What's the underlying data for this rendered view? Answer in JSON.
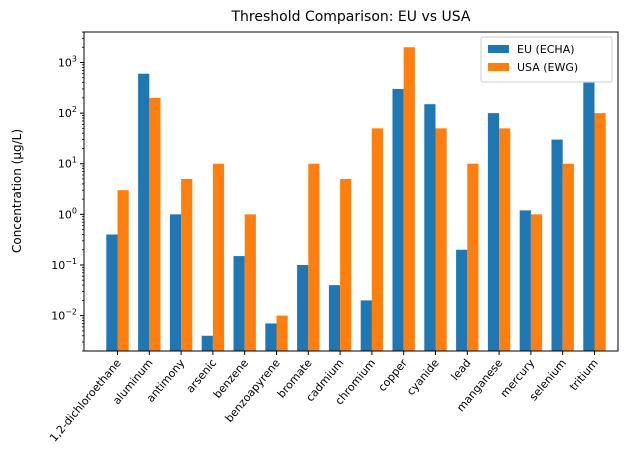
{
  "chart_data": {
    "type": "bar",
    "title": "Threshold Comparison: EU vs USA",
    "xlabel": "",
    "ylabel": "Concentration (µg/L)",
    "yscale": "log",
    "ylim": [
      0.002,
      4000
    ],
    "yticks": [
      {
        "value": 0.01,
        "base": "10",
        "exp": "−2"
      },
      {
        "value": 0.1,
        "base": "10",
        "exp": "−1"
      },
      {
        "value": 1,
        "base": "10",
        "exp": "0"
      },
      {
        "value": 10,
        "base": "10",
        "exp": "1"
      },
      {
        "value": 100,
        "base": "10",
        "exp": "2"
      },
      {
        "value": 1000,
        "base": "10",
        "exp": "3"
      }
    ],
    "categories": [
      "1,2-dichloroethane",
      "aluminum",
      "antimony",
      "arsenic",
      "benzene",
      "benzoapyrene",
      "bromate",
      "cadmium",
      "chromium",
      "copper",
      "cyanide",
      "lead",
      "manganese",
      "mercury",
      "selenium",
      "tritium"
    ],
    "series": [
      {
        "name": "EU (ECHA)",
        "color": "#1f77b4",
        "values": [
          0.4,
          600,
          1,
          0.004,
          0.15,
          0.007,
          0.1,
          0.04,
          0.02,
          300,
          150,
          0.2,
          100,
          1.2,
          30,
          400
        ]
      },
      {
        "name": "USA (EWG)",
        "color": "#ff7f0e",
        "values": [
          3,
          200,
          5,
          10,
          1,
          0.01,
          10,
          5,
          50,
          2000,
          50,
          10,
          50,
          1,
          10,
          100
        ]
      }
    ],
    "legend_position": "top-right",
    "grid": false
  }
}
